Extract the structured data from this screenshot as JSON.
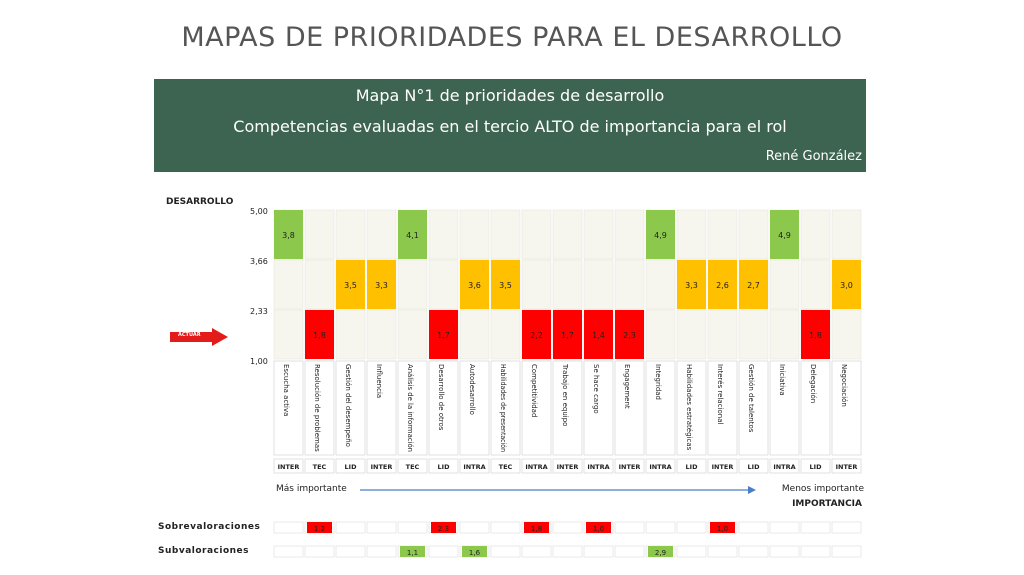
{
  "page": {
    "title": "MAPAS DE PRIORIDADES PARA EL DESARROLLO"
  },
  "banner": {
    "line1": "Mapa N°1 de prioridades de desarrollo",
    "line2": "Competencias evaluadas en el tercio ALTO de importancia para el rol",
    "author": "René González"
  },
  "legend": {
    "more_important": "Más importante",
    "less_important": "Menos importante",
    "actuar": "ACTUAR"
  },
  "colors": {
    "green": "#8cc84b",
    "orange": "#ffc000",
    "red": "#ff0000",
    "arrow": "#4a7ec8",
    "banner": "#3d6450"
  },
  "chart_data": {
    "type": "bar",
    "ylabel": "DESARROLLO",
    "xlabel": "IMPORTANCIA",
    "y_ticks": [
      "5,00",
      "3,66",
      "2,33",
      "1,00"
    ],
    "ylim": [
      1.0,
      5.0
    ],
    "categories": [
      "Escucha activa",
      "Resolución de problemas",
      "Gestión del desempeño",
      "Influencia",
      "Análisis de la información",
      "Desarrollo de otros",
      "Autodesarrollo",
      "Habilidades de presentación",
      "Competitividad",
      "Trabajo en equipo",
      "Se hace cargo",
      "Engagement",
      "Integridad",
      "Habilidades estratégicas",
      "Interés relacional",
      "Gestión de talentos",
      "Iniciativa",
      "Delegación",
      "Negociación"
    ],
    "types": [
      "INTER",
      "TEC",
      "LID",
      "INTER",
      "TEC",
      "LID",
      "INTRA",
      "TEC",
      "INTRA",
      "INTER",
      "INTRA",
      "INTER",
      "INTRA",
      "LID",
      "INTER",
      "LID",
      "INTRA",
      "LID",
      "INTER"
    ],
    "series": [
      {
        "values": [
          3.8,
          1.8,
          3.5,
          3.3,
          4.1,
          1.7,
          3.6,
          3.5,
          2.2,
          1.7,
          1.4,
          2.3,
          4.9,
          3.3,
          2.6,
          2.7,
          4.9,
          1.8,
          3.0
        ],
        "labels": [
          "3,8",
          "1,8",
          "3,5",
          "3,3",
          "4,1",
          "1,7",
          "3,6",
          "3,5",
          "2,2",
          "1,7",
          "1,4",
          "2,3",
          "4,9",
          "3,3",
          "2,6",
          "2,7",
          "4,9",
          "1,8",
          "3,0"
        ]
      }
    ],
    "sobrevaloraciones": {
      "label": "Sobrevaloraciones",
      "values": [
        null,
        "1,2",
        null,
        null,
        null,
        "2,3",
        null,
        null,
        "1,8",
        null,
        "1,0",
        null,
        null,
        null,
        "1,0",
        null,
        null,
        null,
        null
      ]
    },
    "subvaloraciones": {
      "label": "Subvaloraciones",
      "values": [
        null,
        null,
        null,
        null,
        "1,1",
        null,
        "1,6",
        null,
        null,
        null,
        null,
        null,
        "2,9",
        null,
        null,
        null,
        null,
        null,
        null
      ]
    }
  }
}
